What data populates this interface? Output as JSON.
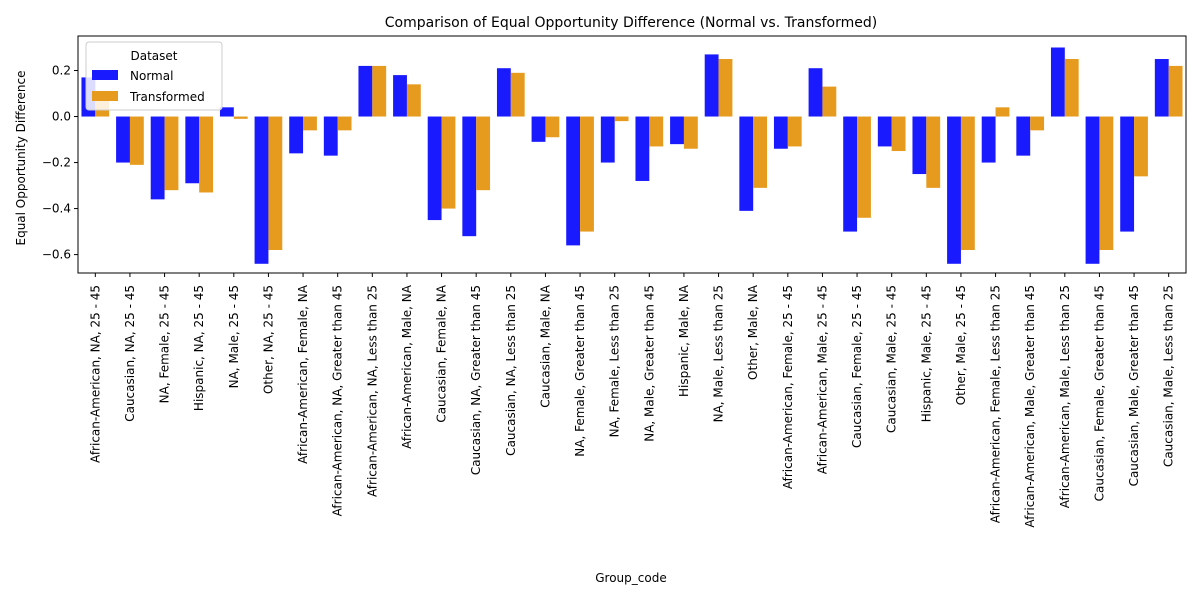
{
  "chart_data": {
    "type": "bar",
    "title": "Comparison of Equal Opportunity Difference (Normal vs. Transformed)",
    "xlabel": "Group_code",
    "ylabel": "Equal Opportunity Difference",
    "ylim": [
      -0.68,
      0.35
    ],
    "yticks": [
      -0.6,
      -0.4,
      -0.2,
      0.0,
      0.2
    ],
    "ytick_labels": [
      "−0.6",
      "−0.4",
      "−0.2",
      "0.0",
      "0.2"
    ],
    "grid": false,
    "legend": {
      "title": "Dataset",
      "position": "upper-left"
    },
    "categories": [
      "African-American, NA, 25 - 45",
      "Caucasian, NA, 25 - 45",
      "NA, Female, 25 - 45",
      "Hispanic, NA, 25 - 45",
      "NA, Male, 25 - 45",
      "Other, NA, 25 - 45",
      "African-American, Female, NA",
      "African-American, NA, Greater than 45",
      "African-American, NA, Less than 25",
      "African-American, Male, NA",
      "Caucasian, Female, NA",
      "Caucasian, NA, Greater than 45",
      "Caucasian, NA, Less than 25",
      "Caucasian, Male, NA",
      "NA, Female, Greater than 45",
      "NA, Female, Less than 25",
      "NA, Male, Greater than 45",
      "Hispanic, Male, NA",
      "NA, Male, Less than 25",
      "Other, Male, NA",
      "African-American, Female, 25 - 45",
      "African-American, Male, 25 - 45",
      "Caucasian, Female, 25 - 45",
      "Caucasian, Male, 25 - 45",
      "Hispanic, Male, 25 - 45",
      "Other, Male, 25 - 45",
      "African-American, Female, Less than 25",
      "African-American, Male, Greater than 45",
      "African-American, Male, Less than 25",
      "Caucasian, Female, Greater than 45",
      "Caucasian, Male, Greater than 45",
      "Caucasian, Male, Less than 25"
    ],
    "series": [
      {
        "name": "Normal",
        "color": "#1a1aff",
        "values": [
          0.17,
          -0.2,
          -0.36,
          -0.29,
          0.04,
          -0.64,
          -0.16,
          -0.17,
          0.22,
          0.18,
          -0.45,
          -0.52,
          0.21,
          -0.11,
          -0.56,
          -0.2,
          -0.28,
          -0.12,
          0.27,
          -0.41,
          -0.14,
          0.21,
          -0.5,
          -0.13,
          -0.25,
          -0.64,
          -0.2,
          -0.17,
          0.3,
          -0.64,
          -0.5,
          0.25
        ]
      },
      {
        "name": "Transformed",
        "color": "#e69b1e",
        "values": [
          0.07,
          -0.21,
          -0.32,
          -0.33,
          -0.01,
          -0.58,
          -0.06,
          -0.06,
          0.22,
          0.14,
          -0.4,
          -0.32,
          0.19,
          -0.09,
          -0.5,
          -0.02,
          -0.13,
          -0.14,
          0.25,
          -0.31,
          -0.13,
          0.13,
          -0.44,
          -0.15,
          -0.31,
          -0.58,
          0.04,
          -0.06,
          0.25,
          -0.58,
          -0.26,
          0.22
        ]
      }
    ]
  }
}
